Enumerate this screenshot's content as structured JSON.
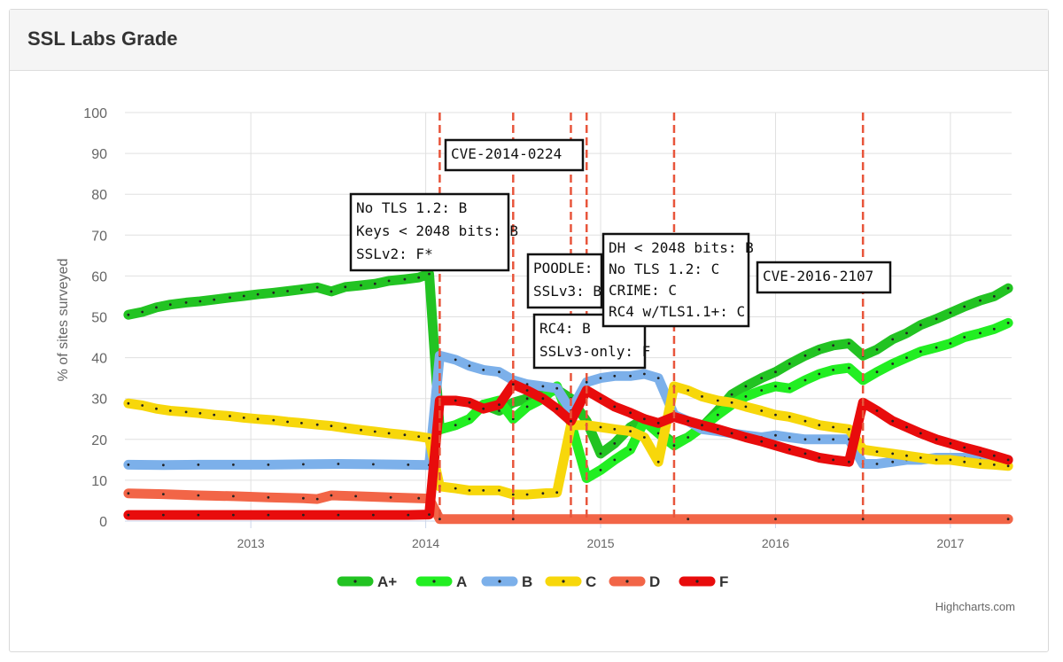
{
  "panel": {
    "title": "SSL Labs Grade"
  },
  "credits": "Highcharts.com",
  "colors": {
    "A+": "#22c322",
    "A": "#22ee22",
    "B": "#7cb0ea",
    "C": "#f7d70b",
    "D": "#f26547",
    "F": "#e80c0c",
    "vline": "#e8553b",
    "grid": "#e0e0e0"
  },
  "chart_data": {
    "type": "line",
    "title": "",
    "xlabel": "",
    "ylabel": "% of sites surveyed",
    "ylim": [
      0,
      100
    ],
    "y_ticks": [
      0,
      10,
      20,
      30,
      40,
      50,
      60,
      70,
      80,
      90,
      100
    ],
    "xlim": [
      2012.28,
      2017.35
    ],
    "x_ticks": [
      "2013",
      "2014",
      "2015",
      "2016",
      "2017"
    ],
    "legend_position": "bottom-center",
    "grid": true,
    "series": [
      {
        "name": "A+",
        "color": "#22c322",
        "x": [
          2012.3,
          2012.38,
          2012.46,
          2012.54,
          2012.63,
          2012.71,
          2012.79,
          2012.88,
          2012.96,
          2013.04,
          2013.13,
          2013.21,
          2013.29,
          2013.38,
          2013.46,
          2013.54,
          2013.63,
          2013.71,
          2013.79,
          2013.88,
          2013.96,
          2014.02,
          2014.08,
          2014.17,
          2014.25,
          2014.33,
          2014.42,
          2014.5,
          2014.58,
          2014.67,
          2014.75,
          2014.83,
          2014.92,
          2015.0,
          2015.08,
          2015.17,
          2015.25,
          2015.33,
          2015.42,
          2015.5,
          2015.58,
          2015.67,
          2015.75,
          2015.83,
          2015.92,
          2016.0,
          2016.08,
          2016.17,
          2016.25,
          2016.33,
          2016.42,
          2016.5,
          2016.58,
          2016.67,
          2016.75,
          2016.83,
          2016.92,
          2017.0,
          2017.08,
          2017.17,
          2017.25,
          2017.33
        ],
        "values": [
          50.5,
          51.2,
          52.3,
          53.0,
          53.5,
          53.8,
          54.2,
          54.7,
          55.1,
          55.5,
          55.9,
          56.3,
          56.7,
          57.2,
          56.2,
          57.3,
          57.7,
          58.1,
          58.8,
          59.2,
          59.6,
          60.5,
          22.4,
          23.5,
          25.0,
          28.5,
          27.0,
          29.0,
          30.0,
          31.0,
          32.2,
          30.0,
          24.5,
          16.5,
          19.0,
          23.0,
          25.0,
          22.0,
          19.0,
          20.5,
          23.0,
          27.0,
          31.0,
          33.0,
          35.0,
          36.5,
          38.5,
          40.5,
          42.0,
          43.0,
          43.5,
          40.5,
          42.0,
          44.5,
          46.0,
          48.0,
          49.5,
          51.0,
          52.5,
          54.0,
          55.0,
          57.0
        ]
      },
      {
        "name": "A",
        "color": "#22ee22",
        "x": [
          2014.08,
          2014.17,
          2014.25,
          2014.33,
          2014.42,
          2014.5,
          2014.58,
          2014.67,
          2014.75,
          2014.83,
          2014.92,
          2015.0,
          2015.08,
          2015.17,
          2015.25,
          2015.33,
          2015.42,
          2015.5,
          2015.58,
          2015.67,
          2015.75,
          2015.83,
          2015.92,
          2016.0,
          2016.08,
          2016.17,
          2016.25,
          2016.33,
          2016.42,
          2016.5,
          2016.58,
          2016.67,
          2016.75,
          2016.83,
          2016.92,
          2017.0,
          2017.08,
          2017.17,
          2017.25,
          2017.33
        ],
        "values": [
          22.5,
          23.5,
          25.0,
          28.5,
          29.5,
          25.0,
          28.0,
          30.0,
          33.0,
          24.0,
          10.5,
          12.5,
          15.0,
          17.5,
          24.5,
          21.5,
          18.5,
          20.5,
          23.0,
          26.0,
          28.5,
          30.5,
          32.0,
          33.0,
          32.5,
          34.5,
          36.0,
          37.0,
          37.5,
          34.5,
          36.5,
          38.5,
          40.0,
          41.5,
          42.5,
          43.5,
          45.0,
          46.0,
          47.0,
          48.5
        ]
      },
      {
        "name": "B",
        "color": "#7cb0ea",
        "x": [
          2012.3,
          2012.5,
          2012.7,
          2012.9,
          2013.1,
          2013.3,
          2013.5,
          2013.7,
          2013.9,
          2014.02,
          2014.08,
          2014.17,
          2014.25,
          2014.33,
          2014.42,
          2014.5,
          2014.58,
          2014.67,
          2014.75,
          2014.83,
          2014.92,
          2015.0,
          2015.08,
          2015.17,
          2015.25,
          2015.33,
          2015.42,
          2015.5,
          2015.58,
          2015.67,
          2015.75,
          2015.83,
          2015.92,
          2016.0,
          2016.08,
          2016.17,
          2016.25,
          2016.33,
          2016.42,
          2016.5,
          2016.58,
          2016.67,
          2016.75,
          2016.83,
          2016.92,
          2017.0,
          2017.08,
          2017.17,
          2017.25,
          2017.33
        ],
        "values": [
          13.8,
          13.7,
          13.8,
          13.8,
          13.8,
          13.9,
          14.0,
          13.9,
          13.8,
          13.7,
          40.5,
          39.5,
          38.0,
          37.0,
          36.5,
          34.5,
          33.5,
          33.0,
          32.5,
          27.0,
          34.0,
          35.0,
          35.5,
          35.5,
          36.0,
          35.0,
          26.0,
          24.5,
          22.5,
          22.0,
          21.5,
          21.0,
          20.5,
          21.0,
          20.5,
          20.0,
          20.0,
          20.0,
          20.0,
          14.0,
          14.0,
          14.5,
          15.0,
          15.0,
          15.5,
          15.5,
          15.5,
          15.0,
          15.0,
          15.0
        ]
      },
      {
        "name": "C",
        "color": "#f7d70b",
        "x": [
          2012.3,
          2012.38,
          2012.46,
          2012.54,
          2012.63,
          2012.71,
          2012.79,
          2012.88,
          2012.96,
          2013.04,
          2013.13,
          2013.21,
          2013.29,
          2013.38,
          2013.46,
          2013.54,
          2013.63,
          2013.71,
          2013.79,
          2013.88,
          2013.96,
          2014.02,
          2014.08,
          2014.17,
          2014.25,
          2014.33,
          2014.42,
          2014.5,
          2014.58,
          2014.67,
          2014.75,
          2014.83,
          2014.92,
          2015.0,
          2015.08,
          2015.17,
          2015.25,
          2015.33,
          2015.42,
          2015.5,
          2015.58,
          2015.67,
          2015.75,
          2015.83,
          2015.92,
          2016.0,
          2016.08,
          2016.17,
          2016.25,
          2016.33,
          2016.42,
          2016.5,
          2016.58,
          2016.67,
          2016.75,
          2016.83,
          2016.92,
          2017.0,
          2017.08,
          2017.17,
          2017.25,
          2017.33
        ],
        "values": [
          28.8,
          28.3,
          27.5,
          27.0,
          26.7,
          26.4,
          26.0,
          25.7,
          25.3,
          25.0,
          24.7,
          24.3,
          24.0,
          23.6,
          23.3,
          22.8,
          22.3,
          21.9,
          21.5,
          21.1,
          20.7,
          20.3,
          8.5,
          8.0,
          7.5,
          7.5,
          7.5,
          6.5,
          6.5,
          6.8,
          7.0,
          23.5,
          23.5,
          23.0,
          22.5,
          22.0,
          20.5,
          14.5,
          33.0,
          32.0,
          30.5,
          29.5,
          29.0,
          28.0,
          27.0,
          26.0,
          25.5,
          24.5,
          23.5,
          23.0,
          22.5,
          17.5,
          17.0,
          16.5,
          16.0,
          15.5,
          15.0,
          15.0,
          14.5,
          14.0,
          13.8,
          13.5
        ]
      },
      {
        "name": "D",
        "color": "#f26547",
        "x": [
          2012.3,
          2012.5,
          2012.7,
          2012.9,
          2013.1,
          2013.3,
          2013.38,
          2013.46,
          2013.6,
          2013.8,
          2013.96,
          2014.02,
          2014.08,
          2014.5,
          2015.0,
          2015.5,
          2016.0,
          2016.5,
          2017.0,
          2017.33
        ],
        "values": [
          6.8,
          6.6,
          6.3,
          6.1,
          5.8,
          5.6,
          5.4,
          6.3,
          6.1,
          5.8,
          5.6,
          5.5,
          0.5,
          0.5,
          0.5,
          0.5,
          0.5,
          0.5,
          0.5,
          0.5
        ]
      },
      {
        "name": "F",
        "color": "#e80c0c",
        "x": [
          2012.3,
          2012.5,
          2012.7,
          2012.9,
          2013.1,
          2013.3,
          2013.5,
          2013.7,
          2013.9,
          2014.02,
          2014.08,
          2014.17,
          2014.25,
          2014.33,
          2014.42,
          2014.5,
          2014.58,
          2014.67,
          2014.75,
          2014.83,
          2014.92,
          2015.0,
          2015.08,
          2015.17,
          2015.25,
          2015.33,
          2015.42,
          2015.5,
          2015.58,
          2015.67,
          2015.75,
          2015.83,
          2015.92,
          2016.0,
          2016.08,
          2016.17,
          2016.25,
          2016.33,
          2016.42,
          2016.5,
          2016.58,
          2016.67,
          2016.75,
          2016.83,
          2016.92,
          2017.0,
          2017.08,
          2017.17,
          2017.25,
          2017.33
        ],
        "values": [
          1.5,
          1.5,
          1.5,
          1.5,
          1.5,
          1.5,
          1.5,
          1.5,
          1.5,
          1.6,
          29.5,
          29.5,
          29.0,
          27.5,
          28.5,
          33.5,
          32.0,
          30.0,
          27.5,
          24.5,
          32.0,
          30.0,
          28.0,
          26.5,
          25.0,
          24.0,
          25.5,
          24.5,
          23.5,
          22.5,
          21.5,
          20.5,
          19.5,
          18.5,
          17.5,
          16.5,
          15.5,
          15.0,
          14.5,
          29.0,
          27.0,
          24.5,
          23.0,
          21.5,
          20.0,
          19.0,
          18.0,
          17.0,
          16.0,
          15.0
        ]
      }
    ],
    "events": [
      {
        "x": 2014.08
      },
      {
        "x": 2014.5
      },
      {
        "x": 2014.83
      },
      {
        "x": 2014.92
      },
      {
        "x": 2015.42
      },
      {
        "x": 2016.5
      }
    ],
    "annotations": [
      {
        "lines": [
          "CVE-2014-0224"
        ]
      },
      {
        "lines": [
          "No TLS 1.2: B",
          "Keys < 2048 bits: B",
          "SSLv2: F*"
        ]
      },
      {
        "lines": [
          "POODLE:",
          "SSLv3: B"
        ]
      },
      {
        "lines": [
          "RC4: B",
          "SSLv3-only: F"
        ]
      },
      {
        "lines": [
          "DH < 2048 bits: B",
          "No TLS 1.2: C",
          "CRIME: C",
          "RC4 w/TLS1.1+: C"
        ]
      },
      {
        "lines": [
          "CVE-2016-2107"
        ]
      }
    ]
  }
}
